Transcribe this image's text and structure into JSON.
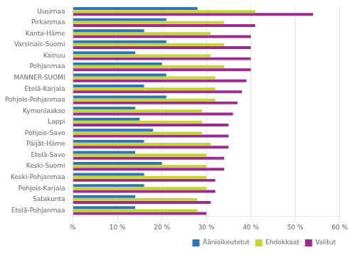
{
  "chart_data": {
    "type": "bar",
    "orientation": "horizontal",
    "categories": [
      "Uusimaa",
      "Pirkanmaa",
      "Kanta-Häme",
      "Varsinais-Suomi",
      "Kainuu",
      "Pohjanmaa",
      "MANNER-SUOMI",
      "Etelä-Karjala",
      "Pohjois-Pohjanmaa",
      "Kymenlaakso",
      "Lappi",
      "Pohjois-Savo",
      "Päijät-Häme",
      "Etelä-Savo",
      "Keski-Suomi",
      "Keski-Pohjanmaa",
      "Pohjois-Karjala",
      "Satakunta",
      "Etelä-Pohjanmaa"
    ],
    "series": [
      {
        "name": "Äänioikeutetut",
        "color": "#2E75B6",
        "values": [
          28,
          21,
          16,
          21,
          14,
          20,
          21,
          16,
          21,
          14,
          15,
          18,
          16,
          14,
          20,
          16,
          16,
          14,
          14
        ]
      },
      {
        "name": "Ehdokkaat",
        "color": "#C5D430",
        "values": [
          41,
          34,
          31,
          34,
          31,
          34,
          32,
          32,
          32,
          29,
          29,
          29,
          31,
          30,
          30,
          30,
          30,
          28,
          28
        ]
      },
      {
        "name": "Valitut",
        "color": "#9B2C8E",
        "values": [
          54,
          41,
          40,
          40,
          40,
          40,
          39,
          38,
          37,
          36,
          35,
          35,
          35,
          34,
          34,
          32,
          32,
          31,
          30
        ]
      }
    ],
    "xlim": [
      0,
      60
    ],
    "xticks": [
      {
        "value": 0,
        "label": "%"
      },
      {
        "value": 10,
        "label": "10 %"
      },
      {
        "value": 20,
        "label": "20 %"
      },
      {
        "value": 30,
        "label": "30 %"
      },
      {
        "value": 40,
        "label": "40 %"
      },
      {
        "value": 50,
        "label": "50 %"
      },
      {
        "value": 60,
        "label": "60 %"
      }
    ],
    "grid": true,
    "legend": "lower right"
  }
}
